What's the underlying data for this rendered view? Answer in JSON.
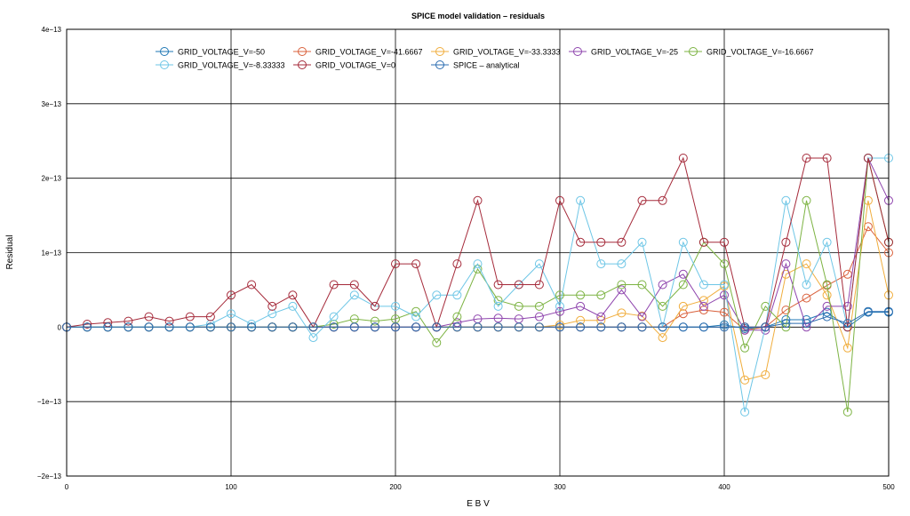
{
  "chart_data": {
    "type": "line",
    "title": "SPICE model validation – residuals",
    "xlabel": "E B V",
    "ylabel": "Residual",
    "xlim": [
      0,
      500
    ],
    "ylim": [
      -2e-13,
      4e-13
    ],
    "x_ticks": [
      0,
      100,
      200,
      300,
      400,
      500
    ],
    "x_tick_labels": [
      "0",
      "100",
      "200",
      "300",
      "400",
      "500"
    ],
    "y_ticks": [
      -2e-13,
      -1e-13,
      0,
      1e-13,
      2e-13,
      3e-13,
      4e-13
    ],
    "y_tick_labels": [
      "−2e−13",
      "−1e−13",
      "0",
      "1e−13",
      "2e−13",
      "3e−13",
      "4e−13"
    ],
    "grid": true,
    "legend_position": "top-center",
    "x": [
      0,
      12.5,
      25,
      37.5,
      50,
      62.5,
      75,
      87.5,
      100,
      112.5,
      125,
      137.5,
      150,
      162.5,
      175,
      187.5,
      200,
      212.5,
      225,
      237.5,
      250,
      262.5,
      275,
      287.5,
      300,
      312.5,
      325,
      337.5,
      350,
      362.5,
      375,
      387.5,
      400,
      412.5,
      425,
      437.5,
      450,
      462.5,
      475,
      487.5,
      500
    ],
    "series": [
      {
        "name": "GRID_VOLTAGE_V=-50",
        "color": "#1f77b4",
        "values": [
          0,
          0,
          0,
          0,
          0,
          0,
          0,
          0,
          0,
          0,
          0,
          0,
          0,
          0,
          0,
          0,
          0,
          0,
          0,
          0,
          0,
          0,
          0,
          0,
          0,
          0,
          0,
          0,
          0,
          0,
          0,
          0,
          3e-15,
          -2e-15,
          0,
          1e-14,
          1e-14,
          2e-14,
          0,
          2e-14,
          2e-14
        ]
      },
      {
        "name": "GRID_VOLTAGE_V=-41.6667",
        "color": "#d9603b",
        "values": [
          0,
          0,
          0,
          0,
          0,
          0,
          0,
          0,
          0,
          0,
          0,
          0,
          0,
          0,
          0,
          0,
          0,
          0,
          0,
          0,
          0,
          0,
          0,
          0,
          0,
          0,
          0,
          0,
          0,
          0,
          1.8e-14,
          2.3e-14,
          2e-14,
          -4e-15,
          0,
          2.3e-14,
          3.9e-14,
          5.6e-14,
          7.1e-14,
          1.35e-13,
          1e-13
        ]
      },
      {
        "name": "GRID_VOLTAGE_V=-33.3333",
        "color": "#f0ad3c",
        "values": [
          0,
          0,
          0,
          0,
          0,
          0,
          0,
          0,
          0,
          0,
          0,
          0,
          0,
          0,
          0,
          0,
          0,
          0,
          0,
          0,
          0,
          0,
          0,
          0,
          3e-15,
          9e-15,
          9e-15,
          1.9e-14,
          1.5e-14,
          -1.4e-14,
          2.8e-14,
          3.6e-14,
          5.5e-14,
          -7.1e-14,
          -6.4e-14,
          7.1e-14,
          8.5e-14,
          4.3e-14,
          -2.8e-14,
          1.7e-13,
          4.3e-14
        ]
      },
      {
        "name": "GRID_VOLTAGE_V=-25",
        "color": "#8e44ad",
        "values": [
          0,
          0,
          0,
          0,
          0,
          0,
          0,
          0,
          0,
          0,
          0,
          0,
          0,
          0,
          0,
          0,
          0,
          0,
          0,
          6e-15,
          1.1e-14,
          1.2e-14,
          1.1e-14,
          1.4e-14,
          2.1e-14,
          2.8e-14,
          1.4e-14,
          5e-14,
          1.4e-14,
          5.7e-14,
          7.1e-14,
          2.8e-14,
          4.3e-14,
          -4e-15,
          -4e-15,
          8.5e-14,
          0,
          2.8e-14,
          2.8e-14,
          2.27e-13,
          1.7e-13
        ]
      },
      {
        "name": "GRID_VOLTAGE_V=-16.6667",
        "color": "#7cb342",
        "values": [
          0,
          0,
          0,
          0,
          0,
          0,
          0,
          0,
          0,
          0,
          0,
          0,
          0,
          4e-15,
          1.1e-14,
          8e-15,
          1.1e-14,
          2.1e-14,
          -2.1e-14,
          1.4e-14,
          7.8e-14,
          3.6e-14,
          2.8e-14,
          2.8e-14,
          4.3e-14,
          4.3e-14,
          4.3e-14,
          5.7e-14,
          5.7e-14,
          2.8e-14,
          5.7e-14,
          1.14e-13,
          8.5e-14,
          -2.8e-14,
          2.8e-14,
          0,
          1.7e-13,
          5.7e-14,
          -1.14e-13,
          2.27e-13,
          1.14e-13
        ]
      },
      {
        "name": "GRID_VOLTAGE_V=-8.33333",
        "color": "#6ec6e6",
        "values": [
          0,
          0,
          0,
          0,
          0,
          0,
          0,
          4e-15,
          1.8e-14,
          4e-15,
          1.8e-14,
          2.8e-14,
          -1.4e-14,
          1.4e-14,
          4.3e-14,
          2.8e-14,
          2.8e-14,
          1.4e-14,
          4.3e-14,
          4.3e-14,
          8.5e-14,
          2.8e-14,
          5.7e-14,
          8.5e-14,
          2.8e-14,
          1.7e-13,
          8.5e-14,
          8.5e-14,
          1.14e-13,
          0,
          1.14e-13,
          5.7e-14,
          5.7e-14,
          -1.14e-13,
          0,
          1.7e-13,
          5.7e-14,
          1.14e-13,
          0,
          2.27e-13,
          2.27e-13
        ]
      },
      {
        "name": "GRID_VOLTAGE_V=0",
        "color": "#a52a3a",
        "values": [
          0,
          4e-15,
          6e-15,
          8e-15,
          1.4e-14,
          8e-15,
          1.4e-14,
          1.4e-14,
          4.3e-14,
          5.7e-14,
          2.8e-14,
          4.3e-14,
          0,
          5.7e-14,
          5.7e-14,
          2.8e-14,
          8.5e-14,
          8.5e-14,
          0,
          8.5e-14,
          1.7e-13,
          5.7e-14,
          5.7e-14,
          5.7e-14,
          1.7e-13,
          1.14e-13,
          1.14e-13,
          1.14e-13,
          1.7e-13,
          1.7e-13,
          2.27e-13,
          1.14e-13,
          1.14e-13,
          0,
          0,
          1.14e-13,
          2.27e-13,
          2.27e-13,
          0,
          2.27e-13,
          1.14e-13
        ]
      },
      {
        "name": "SPICE – analytical",
        "color": "#2b6cb0",
        "values": [
          0,
          0,
          0,
          0,
          0,
          0,
          0,
          0,
          0,
          0,
          0,
          0,
          0,
          0,
          0,
          0,
          0,
          0,
          0,
          0,
          0,
          0,
          0,
          0,
          0,
          0,
          0,
          0,
          0,
          0,
          0,
          0,
          0,
          0,
          0,
          5e-15,
          5e-15,
          1.4e-14,
          5e-15,
          2.1e-14,
          2.1e-14
        ]
      }
    ]
  }
}
